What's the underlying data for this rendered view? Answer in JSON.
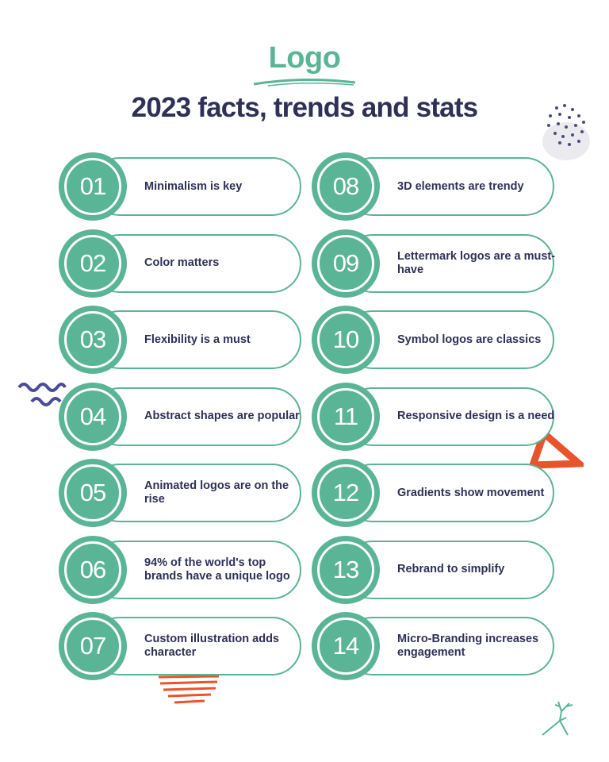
{
  "header": {
    "title": "Logo",
    "subtitle": "2023 facts, trends and stats"
  },
  "colors": {
    "accent": "#5ab496",
    "text": "#2e3057",
    "orange": "#e8542c"
  },
  "items": [
    {
      "num": "01",
      "text": "Minimalism is key"
    },
    {
      "num": "02",
      "text": "Color matters"
    },
    {
      "num": "03",
      "text": "Flexibility is a must"
    },
    {
      "num": "04",
      "text": "Abstract shapes are popular"
    },
    {
      "num": "05",
      "text": "Animated logos are on the rise"
    },
    {
      "num": "06",
      "text": "94% of the world's top brands have a unique logo"
    },
    {
      "num": "07",
      "text": "Custom illustration adds character"
    },
    {
      "num": "08",
      "text": "3D elements are trendy"
    },
    {
      "num": "09",
      "text": "Lettermark logos are a must-have"
    },
    {
      "num": "10",
      "text": "Symbol logos are classics"
    },
    {
      "num": "11",
      "text": "Responsive design is a need"
    },
    {
      "num": "12",
      "text": "Gradients show movement"
    },
    {
      "num": "13",
      "text": "Rebrand to simplify"
    },
    {
      "num": "14",
      "text": "Micro-Branding increases engagement"
    }
  ]
}
